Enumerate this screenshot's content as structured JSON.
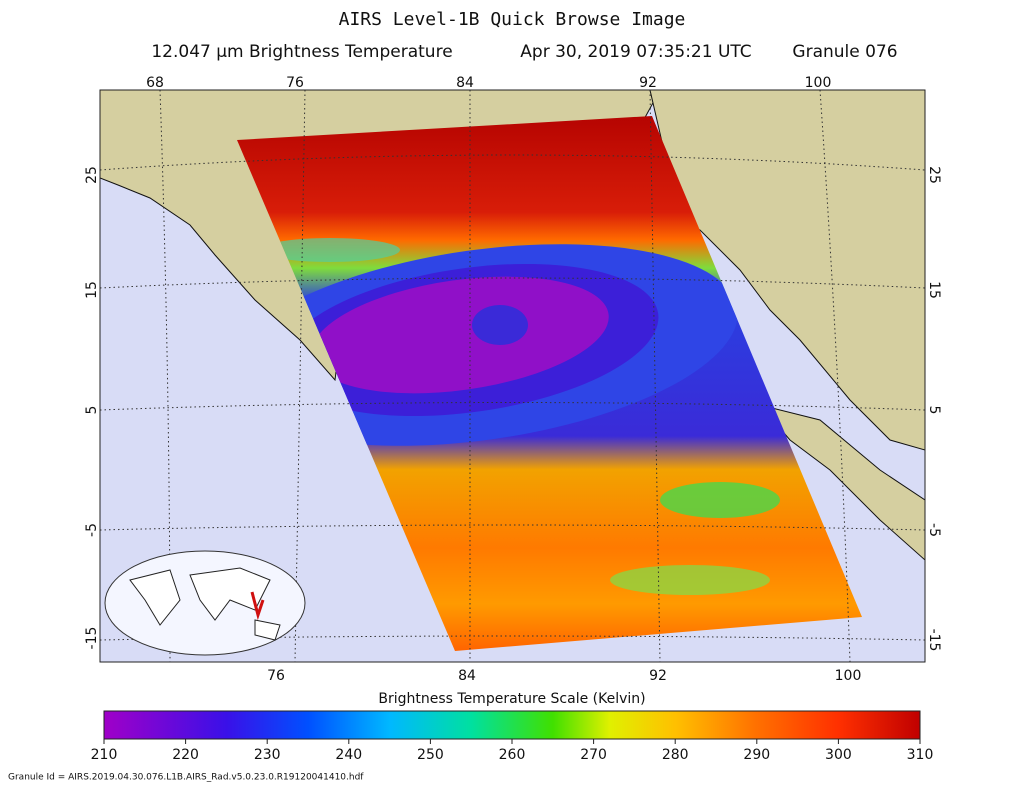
{
  "header": {
    "title": "AIRS Level-1B Quick Browse Image",
    "subtitle": [
      "12.047 μm Brightness Temperature",
      "Apr 30, 2019 07:35:21 UTC",
      "Granule 076"
    ]
  },
  "map": {
    "lon_top": [
      "68",
      "76",
      "84",
      "92",
      "100"
    ],
    "lon_bottom": [
      "76",
      "84",
      "92",
      "100"
    ],
    "lat_left": [
      "25",
      "15",
      "5",
      "-5",
      "-15"
    ],
    "lat_right": [
      "25",
      "15",
      "5",
      "-5",
      "-15"
    ]
  },
  "colorbar": {
    "title": "Brightness Temperature Scale (Kelvin)",
    "range": [
      210,
      310
    ],
    "ticks": [
      210,
      220,
      230,
      240,
      250,
      260,
      270,
      280,
      290,
      300,
      310
    ]
  },
  "footer": {
    "granule_id": "Granule Id = AIRS.2019.04.30.076.L1B.AIRS_Rad.v5.0.23.0.R19120041410.hdf"
  }
}
